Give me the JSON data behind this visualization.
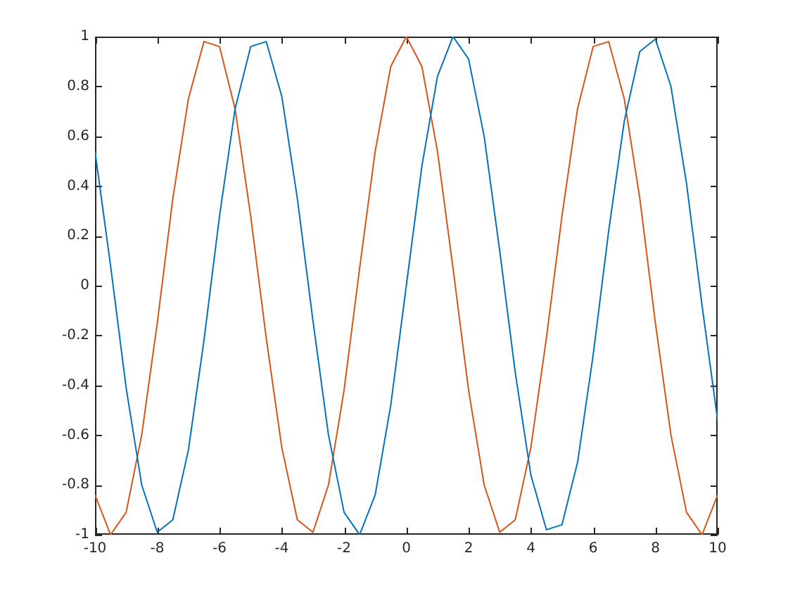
{
  "chart_data": {
    "type": "line",
    "x": [
      -10,
      -9.5,
      -9,
      -8.5,
      -8,
      -7.5,
      -7,
      -6.5,
      -6,
      -5.5,
      -5,
      -4.5,
      -4,
      -3.5,
      -3,
      -2.5,
      -2,
      -1.5,
      -1,
      -0.5,
      0,
      0.5,
      1,
      1.5,
      2,
      2.5,
      3,
      3.5,
      4,
      4.5,
      5,
      5.5,
      6,
      6.5,
      7,
      7.5,
      8,
      8.5,
      9,
      9.5,
      10
    ],
    "series": [
      {
        "color": "#0072bd",
        "values": [
          0.54,
          0.08,
          -0.41,
          -0.8,
          -0.99,
          -0.94,
          -0.66,
          -0.22,
          0.28,
          0.71,
          0.96,
          0.98,
          0.76,
          0.35,
          -0.14,
          -0.6,
          -0.91,
          -1,
          -0.84,
          -0.48,
          0,
          0.48,
          0.84,
          1,
          0.91,
          0.6,
          0.14,
          -0.35,
          -0.76,
          -0.98,
          -0.96,
          -0.71,
          -0.28,
          0.22,
          0.66,
          0.94,
          0.99,
          0.8,
          0.41,
          -0.08,
          -0.54
        ]
      },
      {
        "color": "#d95319",
        "values": [
          -0.84,
          -1,
          -0.91,
          -0.6,
          -0.15,
          0.35,
          0.75,
          0.98,
          0.96,
          0.71,
          0.28,
          -0.21,
          -0.65,
          -0.94,
          -0.99,
          -0.8,
          -0.42,
          0.07,
          0.54,
          0.88,
          1,
          0.88,
          0.54,
          0.07,
          -0.42,
          -0.8,
          -0.99,
          -0.94,
          -0.65,
          -0.21,
          0.28,
          0.71,
          0.96,
          0.98,
          0.75,
          0.35,
          -0.15,
          -0.6,
          -0.91,
          -1,
          -0.84
        ]
      }
    ],
    "xlim": [
      -10,
      10
    ],
    "xticks": [
      -10,
      -8,
      -6,
      -4,
      -2,
      0,
      2,
      4,
      6,
      8,
      10
    ],
    "ylim": [
      -1,
      1
    ],
    "yticks": [
      -1,
      -0.8,
      -0.6,
      -0.4,
      -0.2,
      0,
      0.2,
      0.4,
      0.6,
      0.8,
      1
    ],
    "grid": false,
    "legend": false,
    "marker": "none",
    "line_style": "solid"
  }
}
